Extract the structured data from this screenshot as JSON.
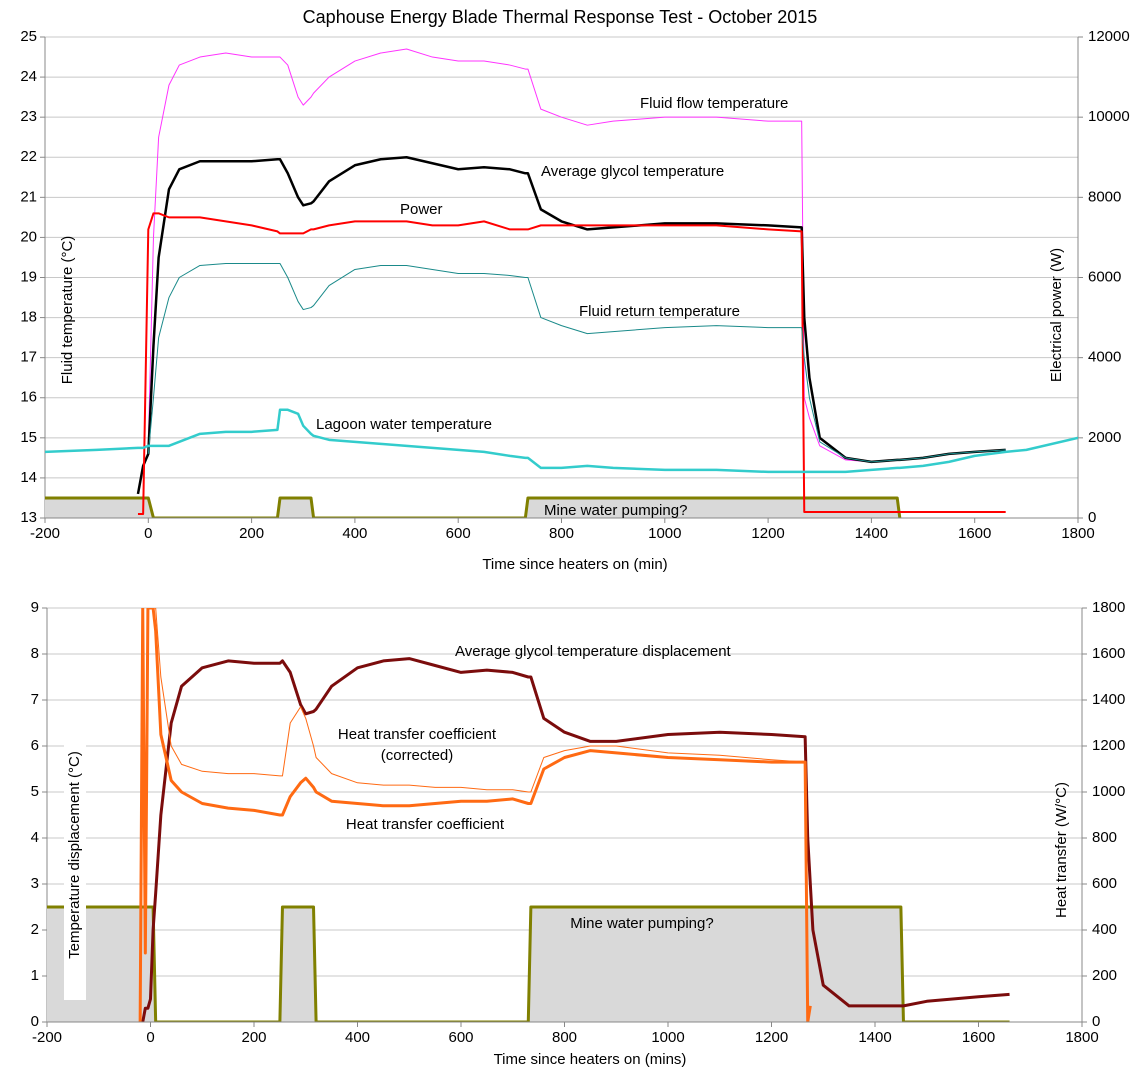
{
  "chart_data": [
    {
      "type": "line",
      "title": "Caphouse Energy Blade Thermal Response Test - October 2015",
      "xlabel": "Time since heaters on (min)",
      "ylabel": "Fluid temperature (°C)",
      "y2label": "Electrical power (W)",
      "grid": true,
      "xlim": [
        -200,
        1800
      ],
      "xticks": [
        -200,
        0,
        200,
        400,
        600,
        800,
        1000,
        1200,
        1400,
        1600,
        1800
      ],
      "ylim": [
        13,
        25
      ],
      "yticks": [
        13,
        14,
        15,
        16,
        17,
        18,
        19,
        20,
        21,
        22,
        23,
        24,
        25
      ],
      "y2lim": [
        0,
        12000
      ],
      "y2ticks": [
        0,
        2000,
        4000,
        6000,
        8000,
        10000,
        12000
      ],
      "x": [
        -200,
        -100,
        -20,
        -10,
        0,
        10,
        20,
        40,
        60,
        100,
        150,
        200,
        250,
        255,
        270,
        290,
        300,
        315,
        320,
        350,
        400,
        450,
        500,
        550,
        600,
        650,
        700,
        730,
        735,
        760,
        800,
        850,
        900,
        1000,
        1100,
        1200,
        1265,
        1270,
        1280,
        1300,
        1350,
        1400,
        1450,
        1455,
        1500,
        1550,
        1600,
        1660,
        1700,
        1800
      ],
      "series": [
        {
          "name": "Fluid flow temperature",
          "color": "#ff33ff",
          "values": [
            null,
            null,
            null,
            null,
            14.8,
            20,
            22.5,
            23.8,
            24.3,
            24.5,
            24.6,
            24.5,
            24.5,
            24.5,
            24.3,
            23.5,
            23.3,
            23.5,
            23.6,
            24.0,
            24.4,
            24.6,
            24.7,
            24.5,
            24.4,
            24.4,
            24.3,
            24.2,
            24.2,
            23.2,
            23.0,
            22.8,
            22.9,
            23.0,
            23.0,
            22.9,
            22.9,
            16,
            15.5,
            14.8,
            14.45,
            14.4,
            14.45,
            14.45,
            14.5,
            14.6,
            14.65,
            14.7,
            null,
            null
          ]
        },
        {
          "name": "Average glycol temperature",
          "color": "#000000",
          "values": [
            null,
            null,
            13.6,
            14.3,
            14.6,
            17.3,
            19.5,
            21.2,
            21.7,
            21.9,
            21.9,
            21.9,
            21.95,
            21.95,
            21.6,
            21.0,
            20.8,
            20.85,
            20.9,
            21.4,
            21.8,
            21.95,
            22.0,
            21.85,
            21.7,
            21.75,
            21.7,
            21.6,
            21.6,
            20.7,
            20.4,
            20.2,
            20.25,
            20.35,
            20.35,
            20.3,
            20.25,
            18,
            16.5,
            15.0,
            14.5,
            14.4,
            14.45,
            14.45,
            14.5,
            14.6,
            14.65,
            14.7,
            null,
            null
          ]
        },
        {
          "name": "Power",
          "color": "#ff0000",
          "axis": "y2",
          "values": [
            null,
            null,
            100,
            100,
            7200,
            7600,
            7600,
            7500,
            7500,
            7500,
            7400,
            7300,
            7150,
            7100,
            7100,
            7100,
            7100,
            7200,
            7200,
            7300,
            7400,
            7400,
            7400,
            7300,
            7300,
            7400,
            7200,
            7200,
            7200,
            7300,
            7300,
            7300,
            7300,
            7300,
            7300,
            7200,
            7150,
            150,
            150,
            150,
            150,
            150,
            150,
            150,
            150,
            150,
            150,
            150,
            null,
            null
          ]
        },
        {
          "name": "Fluid return temperature",
          "color": "#1a8a8a",
          "values": [
            null,
            null,
            null,
            null,
            14.6,
            16,
            17.5,
            18.5,
            19.0,
            19.3,
            19.35,
            19.35,
            19.35,
            19.35,
            19.0,
            18.4,
            18.2,
            18.25,
            18.3,
            18.8,
            19.2,
            19.3,
            19.3,
            19.2,
            19.1,
            19.1,
            19.05,
            19.0,
            19.0,
            18.0,
            17.8,
            17.6,
            17.65,
            17.75,
            17.8,
            17.75,
            17.75,
            17.0,
            16.0,
            14.9,
            14.5,
            14.4,
            14.45,
            14.45,
            14.5,
            14.6,
            14.65,
            14.7,
            null,
            null
          ]
        },
        {
          "name": "Lagoon water temperature",
          "color": "#33cccc",
          "values": [
            14.65,
            14.7,
            14.75,
            14.75,
            14.8,
            14.8,
            14.8,
            14.8,
            14.9,
            15.1,
            15.15,
            15.15,
            15.2,
            15.7,
            15.7,
            15.6,
            15.3,
            15.1,
            15.05,
            14.95,
            14.9,
            14.85,
            14.8,
            14.75,
            14.7,
            14.65,
            14.55,
            14.5,
            14.5,
            14.25,
            14.25,
            14.3,
            14.25,
            14.2,
            14.2,
            14.15,
            14.15,
            14.15,
            14.15,
            14.15,
            14.15,
            14.2,
            14.25,
            14.25,
            14.3,
            14.4,
            14.55,
            14.65,
            14.7,
            15.0
          ]
        },
        {
          "name": "Mine water pumping?",
          "color": "#808000",
          "fill": "#d9d9d9",
          "axis": "y2",
          "values": [
            500,
            500,
            500,
            500,
            500,
            0,
            0,
            0,
            0,
            0,
            0,
            0,
            0,
            500,
            500,
            500,
            500,
            500,
            0,
            0,
            0,
            0,
            0,
            0,
            0,
            0,
            0,
            0,
            500,
            500,
            500,
            500,
            500,
            500,
            500,
            500,
            500,
            500,
            500,
            500,
            500,
            500,
            500,
            0,
            null,
            null,
            null,
            null,
            null,
            null
          ]
        }
      ]
    },
    {
      "type": "line",
      "xlabel": "Time since heaters on (mins)",
      "ylabel": "Temperature displacement (°C)",
      "y2label": "Heat transfer (W/°C)",
      "grid": true,
      "xlim": [
        -200,
        1800
      ],
      "xticks": [
        -200,
        0,
        200,
        400,
        600,
        800,
        1000,
        1200,
        1400,
        1600,
        1800
      ],
      "ylim": [
        0,
        9
      ],
      "yticks": [
        0,
        1,
        2,
        3,
        4,
        5,
        6,
        7,
        8,
        9
      ],
      "y2lim": [
        0,
        1800
      ],
      "y2ticks": [
        0,
        200,
        400,
        600,
        800,
        1000,
        1200,
        1400,
        1600,
        1800
      ],
      "x": [
        -200,
        -20,
        -15,
        -10,
        -5,
        0,
        5,
        10,
        20,
        40,
        60,
        100,
        150,
        200,
        250,
        255,
        270,
        290,
        300,
        315,
        320,
        350,
        400,
        450,
        500,
        550,
        600,
        650,
        700,
        730,
        735,
        760,
        800,
        850,
        900,
        1000,
        1100,
        1200,
        1265,
        1270,
        1275,
        1280,
        1300,
        1350,
        1400,
        1450,
        1455,
        1500,
        1600,
        1660
      ],
      "series": [
        {
          "name": "Average glycol temperature displacement",
          "color": "#7b0c0c",
          "values": [
            null,
            0,
            0,
            0.3,
            0.3,
            0.5,
            2,
            2.8,
            4.5,
            6.5,
            7.3,
            7.7,
            7.85,
            7.8,
            7.8,
            7.85,
            7.6,
            6.9,
            6.7,
            6.75,
            6.8,
            7.3,
            7.7,
            7.85,
            7.9,
            7.75,
            7.6,
            7.65,
            7.6,
            7.5,
            7.5,
            6.6,
            6.3,
            6.1,
            6.1,
            6.25,
            6.3,
            6.25,
            6.2,
            4.0,
            3.0,
            2.0,
            0.8,
            0.35,
            0.35,
            0.35,
            0.35,
            0.45,
            0.55,
            0.6
          ]
        },
        {
          "name": "Heat transfer coefficient (corrected)",
          "color": "#ff6a13",
          "axis": "y2",
          "values": [
            null,
            0,
            1800,
            600,
            1800,
            1800,
            1800,
            1800,
            1500,
            1200,
            1120,
            1090,
            1080,
            1080,
            1070,
            1070,
            1300,
            1370,
            1320,
            1200,
            1150,
            1080,
            1040,
            1030,
            1030,
            1020,
            1020,
            1010,
            1010,
            1000,
            1000,
            1150,
            1180,
            1200,
            1200,
            1170,
            1160,
            1140,
            1130,
            null,
            null,
            null,
            null,
            null,
            null,
            null,
            null,
            null,
            null,
            null
          ]
        },
        {
          "name": "Heat transfer coefficient",
          "color": "#ff6a13",
          "axis": "y2",
          "values": [
            null,
            0,
            1800,
            300,
            1800,
            1800,
            1800,
            1700,
            1250,
            1050,
            1000,
            950,
            930,
            920,
            900,
            900,
            980,
            1040,
            1060,
            1020,
            1000,
            960,
            950,
            940,
            940,
            950,
            960,
            960,
            970,
            950,
            950,
            1100,
            1150,
            1180,
            1170,
            1150,
            1140,
            1130,
            1130,
            0,
            70,
            null,
            null,
            null,
            null,
            null,
            null,
            null,
            null,
            null
          ]
        },
        {
          "name": "Mine water pumping?",
          "color": "#808000",
          "fill": "#d9d9d9",
          "values": [
            2.5,
            2.5,
            2.5,
            2.5,
            2.5,
            2.5,
            2.5,
            0,
            0,
            0,
            0,
            0,
            0,
            0,
            0,
            2.5,
            2.5,
            2.5,
            2.5,
            2.5,
            0,
            0,
            0,
            0,
            0,
            0,
            0,
            0,
            0,
            0,
            2.5,
            2.5,
            2.5,
            2.5,
            2.5,
            2.5,
            2.5,
            2.5,
            2.5,
            2.5,
            2.5,
            2.5,
            2.5,
            2.5,
            2.5,
            2.5,
            0,
            0,
            0,
            0
          ]
        }
      ]
    }
  ]
}
